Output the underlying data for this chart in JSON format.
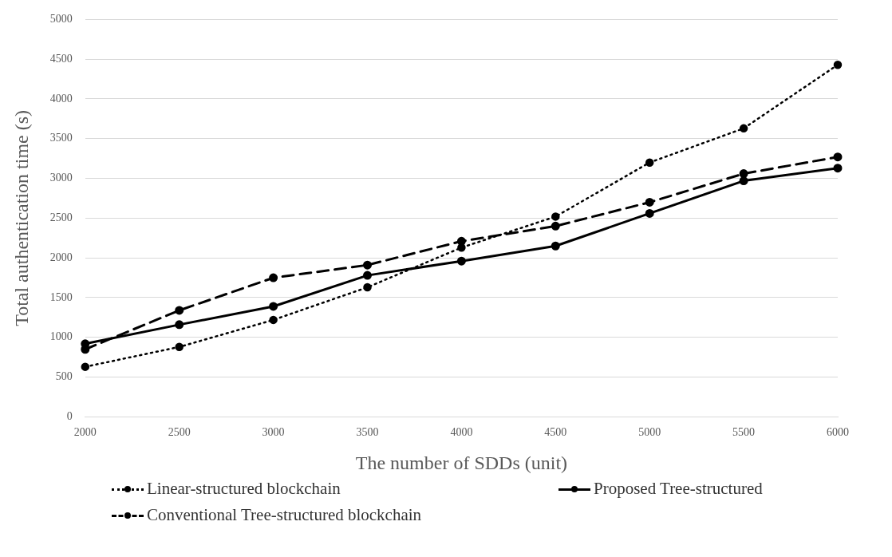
{
  "chart_data": {
    "type": "line",
    "xlabel": "The number of SDDs (unit)",
    "ylabel": "Total authentication time (s)",
    "categories": [
      "2000",
      "2500",
      "3000",
      "3500",
      "4000",
      "4500",
      "5000",
      "5500",
      "6000"
    ],
    "ylim": [
      0,
      5000
    ],
    "yticks": [
      0,
      500,
      1000,
      1500,
      2000,
      2500,
      3000,
      3500,
      4000,
      4500,
      5000
    ],
    "grid": "y",
    "legend": "bottom",
    "marker": "circle",
    "series": [
      {
        "name": "Linear-structured blockchain",
        "color": "#000000",
        "line_style": "dotted",
        "values": [
          630,
          880,
          1220,
          1630,
          2130,
          2520,
          3200,
          3630,
          4430
        ]
      },
      {
        "name": "Proposed Tree-structured",
        "color": "#000000",
        "line_style": "solid",
        "values": [
          920,
          1160,
          1390,
          1780,
          1960,
          2150,
          2560,
          2970,
          3130
        ]
      },
      {
        "name": "Conventional Tree-structured blockchain",
        "color": "#000000",
        "line_style": "dashed",
        "values": [
          850,
          1340,
          1750,
          1910,
          2210,
          2400,
          2700,
          3060,
          3270
        ]
      }
    ]
  }
}
